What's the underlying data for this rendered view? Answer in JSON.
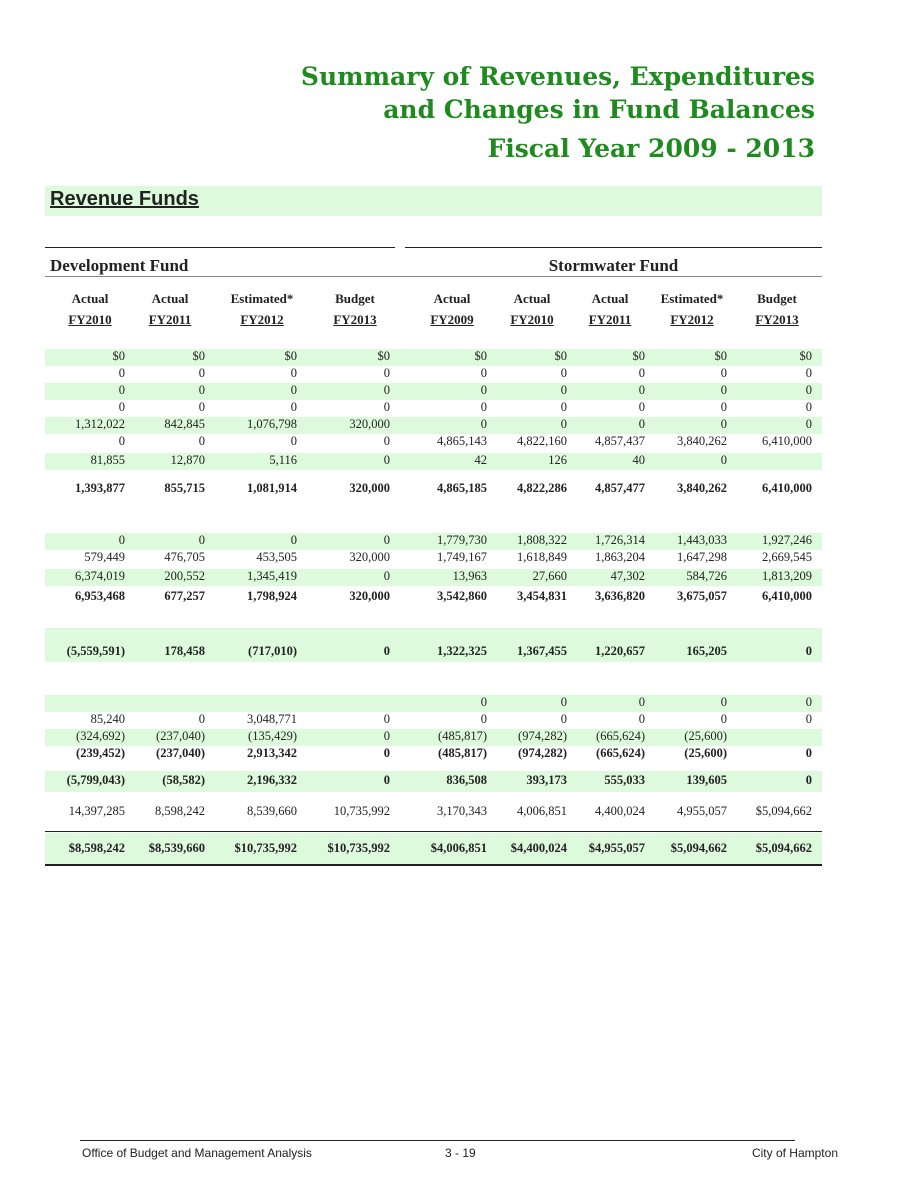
{
  "header": {
    "title_lines": [
      "Summary of Revenues, Expenditures",
      "and Changes in Fund Balances",
      "Fiscal Year 2009 - 2013"
    ],
    "section": "Revenue Funds"
  },
  "table": {
    "groups": [
      "Development Fund",
      "Stormwater Fund"
    ],
    "columns": [
      [
        "Actual",
        "FY2010"
      ],
      [
        "Actual",
        "FY2011"
      ],
      [
        "Estimated*",
        "FY2012"
      ],
      [
        "Budget",
        "FY2013"
      ],
      [
        "Actual",
        "FY2009"
      ],
      [
        "Actual",
        "FY2010"
      ],
      [
        "Actual",
        "FY2011"
      ],
      [
        "Estimated*",
        "FY2012"
      ],
      [
        "Budget",
        "FY2013"
      ]
    ],
    "rows": [
      {
        "shaded": true,
        "bold": false,
        "cells": [
          "$0",
          "$0",
          "$0",
          "$0",
          "$0",
          "$0",
          "$0",
          "$0",
          "$0"
        ]
      },
      {
        "shaded": false,
        "bold": false,
        "cells": [
          "0",
          "0",
          "0",
          "0",
          "0",
          "0",
          "0",
          "0",
          "0"
        ]
      },
      {
        "shaded": true,
        "bold": false,
        "cells": [
          "0",
          "0",
          "0",
          "0",
          "0",
          "0",
          "0",
          "0",
          "0"
        ]
      },
      {
        "shaded": false,
        "bold": false,
        "cells": [
          "0",
          "0",
          "0",
          "0",
          "0",
          "0",
          "0",
          "0",
          "0"
        ]
      },
      {
        "shaded": true,
        "bold": false,
        "cells": [
          "1,312,022",
          "842,845",
          "1,076,798",
          "320,000",
          "0",
          "0",
          "0",
          "0",
          "0"
        ]
      },
      {
        "shaded": false,
        "bold": false,
        "cells": [
          "0",
          "0",
          "0",
          "0",
          "4,865,143",
          "4,822,160",
          "4,857,437",
          "3,840,262",
          "6,410,000"
        ]
      },
      {
        "shaded": true,
        "bold": false,
        "cells": [
          "81,855",
          "12,870",
          "5,116",
          "0",
          "42",
          "126",
          "40",
          "0",
          null
        ]
      },
      {
        "shaded": false,
        "bold": true,
        "cells": [
          "1,393,877",
          "855,715",
          "1,081,914",
          "320,000",
          "4,865,185",
          "4,822,286",
          "4,857,477",
          "3,840,262",
          "6,410,000"
        ]
      },
      {
        "shaded": true,
        "bold": false,
        "cells": [
          "0",
          "0",
          "0",
          "0",
          "1,779,730",
          "1,808,322",
          "1,726,314",
          "1,443,033",
          "1,927,246"
        ]
      },
      {
        "shaded": false,
        "bold": false,
        "cells": [
          "579,449",
          "476,705",
          "453,505",
          "320,000",
          "1,749,167",
          "1,618,849",
          "1,863,204",
          "1,647,298",
          "2,669,545"
        ]
      },
      {
        "shaded": true,
        "bold": false,
        "cells": [
          "6,374,019",
          "200,552",
          "1,345,419",
          "0",
          "13,963",
          "27,660",
          "47,302",
          "584,726",
          "1,813,209"
        ]
      },
      {
        "shaded": false,
        "bold": true,
        "cells": [
          "6,953,468",
          "677,257",
          "1,798,924",
          "320,000",
          "3,542,860",
          "3,454,831",
          "3,636,820",
          "3,675,057",
          "6,410,000"
        ]
      },
      {
        "shaded": true,
        "bold": true,
        "cells": [
          "(5,559,591)",
          "178,458",
          "(717,010)",
          "0",
          "1,322,325",
          "1,367,455",
          "1,220,657",
          "165,205",
          "0"
        ]
      },
      {
        "shaded": true,
        "bold": false,
        "cells": [
          null,
          null,
          null,
          null,
          "0",
          "0",
          "0",
          "0",
          "0"
        ]
      },
      {
        "shaded": false,
        "bold": false,
        "cells": [
          "85,240",
          "0",
          "3,048,771",
          "0",
          "0",
          "0",
          "0",
          "0",
          "0"
        ]
      },
      {
        "shaded": true,
        "bold": false,
        "cells": [
          "(324,692)",
          "(237,040)",
          "(135,429)",
          "0",
          "(485,817)",
          "(974,282)",
          "(665,624)",
          "(25,600)",
          null
        ]
      },
      {
        "shaded": false,
        "bold": true,
        "cells": [
          "(239,452)",
          "(237,040)",
          "2,913,342",
          "0",
          "(485,817)",
          "(974,282)",
          "(665,624)",
          "(25,600)",
          "0"
        ]
      },
      {
        "shaded": true,
        "bold": true,
        "cells": [
          "(5,799,043)",
          "(58,582)",
          "2,196,332",
          "0",
          "836,508",
          "393,173",
          "555,033",
          "139,605",
          "0"
        ]
      },
      {
        "shaded": false,
        "bold": false,
        "cells": [
          "14,397,285",
          "8,598,242",
          "8,539,660",
          "10,735,992",
          "3,170,343",
          "4,006,851",
          "4,400,024",
          "4,955,057",
          "$5,094,662"
        ]
      },
      {
        "shaded": true,
        "bold": true,
        "cells": [
          "$8,598,242",
          "$8,539,660",
          "$10,735,992",
          "$10,735,992",
          "$4,006,851",
          "$4,400,024",
          "$4,955,057",
          "$5,094,662",
          "$5,094,662"
        ]
      }
    ]
  },
  "footer": {
    "left": "Office of Budget and Management Analysis",
    "center": "3 - 19",
    "right": "City of Hampton"
  }
}
